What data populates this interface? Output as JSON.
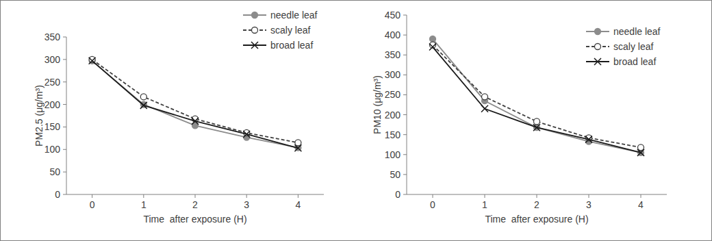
{
  "chart_data": [
    {
      "type": "line",
      "y_label": "PM2.5 (μg/m³)",
      "x_label": "Time  after exposure (H)",
      "x": [
        0,
        1,
        2,
        3,
        4
      ],
      "xlim": [
        -0.5,
        4.5
      ],
      "xticks": [
        0,
        1,
        2,
        3,
        4
      ],
      "ylim": [
        0,
        350
      ],
      "yticks": [
        0,
        50,
        100,
        150,
        200,
        250,
        300,
        350
      ],
      "grid": false,
      "legend": "top-right",
      "series": [
        {
          "name": "needle leaf",
          "color": "#8c8c8c",
          "marker": "filled-circle",
          "line_style": "solid",
          "values": [
            297,
            200,
            153,
            127,
            104
          ]
        },
        {
          "name": "scaly leaf",
          "color": "#404040",
          "marker": "open-circle",
          "line_style": "dashed",
          "values": [
            300,
            217,
            168,
            137,
            115
          ]
        },
        {
          "name": "broad leaf",
          "color": "#1a1a1a",
          "marker": "x",
          "line_style": "solid",
          "values": [
            297,
            198,
            163,
            134,
            103
          ]
        }
      ]
    },
    {
      "type": "line",
      "y_label": "PM10 (μg/m³)",
      "x_label": "Time  after exposure (H)",
      "x": [
        0,
        1,
        2,
        3,
        4
      ],
      "xlim": [
        -0.5,
        4.5
      ],
      "xticks": [
        0,
        1,
        2,
        3,
        4
      ],
      "ylim": [
        0,
        450
      ],
      "yticks": [
        0,
        50,
        100,
        150,
        200,
        250,
        300,
        350,
        400,
        450
      ],
      "grid": false,
      "legend": "top-right",
      "series": [
        {
          "name": "needle leaf",
          "color": "#8c8c8c",
          "marker": "filled-circle",
          "line_style": "solid",
          "values": [
            390,
            235,
            168,
            133,
            105
          ]
        },
        {
          "name": "scaly leaf",
          "color": "#404040",
          "marker": "open-circle",
          "line_style": "dashed",
          "values": [
            375,
            245,
            183,
            142,
            118
          ]
        },
        {
          "name": "broad leaf",
          "color": "#1a1a1a",
          "marker": "x",
          "line_style": "solid",
          "values": [
            370,
            215,
            168,
            138,
            105
          ]
        }
      ]
    }
  ]
}
